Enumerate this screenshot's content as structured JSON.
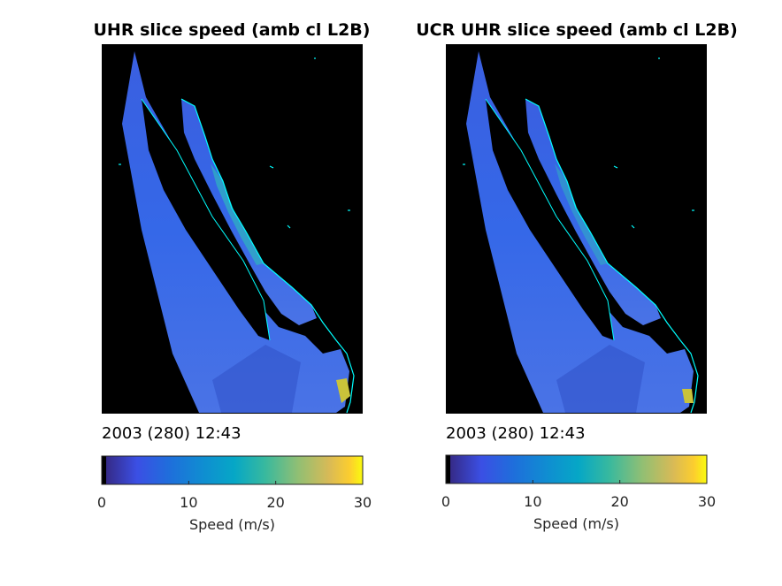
{
  "panels": [
    {
      "title": "UHR slice speed (amb cl L2B)",
      "timestamp": "2003 (280) 12:43",
      "colorbar": {
        "label": "Speed (m/s)",
        "ticks": [
          "0",
          "10",
          "20",
          "30"
        ]
      }
    },
    {
      "title": "UCR UHR slice speed (amb cl L2B)",
      "timestamp": "2003 (280) 12:43",
      "colorbar": {
        "label": "Speed (m/s)",
        "ticks": [
          "0",
          "10",
          "20",
          "30"
        ]
      }
    }
  ],
  "chart_data": [
    {
      "type": "heatmap",
      "title": "UHR slice speed (amb cl L2B)",
      "annotation": "2003 (280) 12:43",
      "colorbar": {
        "label": "Speed (m/s)",
        "range": [
          0,
          30
        ],
        "ticks": [
          0,
          10,
          20,
          30
        ],
        "colormap": "parula"
      },
      "background_color": "#000000",
      "coastline_color": "#00ffff"
    },
    {
      "type": "heatmap",
      "title": "UCR UHR slice speed (amb cl L2B)",
      "annotation": "2003 (280) 12:43",
      "colorbar": {
        "label": "Speed (m/s)",
        "range": [
          0,
          30
        ],
        "ticks": [
          0,
          10,
          20,
          30
        ],
        "colormap": "parula"
      },
      "background_color": "#000000",
      "coastline_color": "#00ffff"
    }
  ]
}
